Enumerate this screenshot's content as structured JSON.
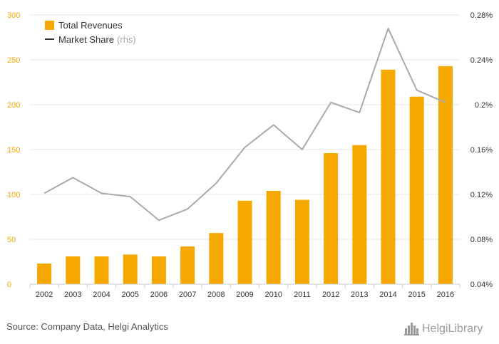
{
  "chart_data": {
    "type": "bar",
    "categories": [
      "2002",
      "2003",
      "2004",
      "2005",
      "2006",
      "2007",
      "2008",
      "2009",
      "2010",
      "2011",
      "2012",
      "2013",
      "2014",
      "2015",
      "2016"
    ],
    "series": [
      {
        "name": "Total Revenues",
        "type": "bar",
        "axis": "left",
        "color": "#f5a800",
        "values": [
          23,
          31,
          31,
          33,
          31,
          42,
          57,
          93,
          104,
          94,
          146,
          155,
          239,
          209,
          243
        ]
      },
      {
        "name": "Market Share",
        "name_suffix": "(rhs)",
        "type": "line",
        "axis": "right",
        "color": "#aaaaaa",
        "values": [
          0.121,
          0.135,
          0.121,
          0.118,
          0.097,
          0.107,
          0.13,
          0.162,
          0.182,
          0.16,
          0.202,
          0.193,
          0.268,
          0.213,
          0.202
        ]
      }
    ],
    "y_left": {
      "range": [
        0,
        300
      ],
      "ticks": [
        "0",
        "50",
        "100",
        "150",
        "200",
        "250",
        "300"
      ]
    },
    "y_right": {
      "range": [
        0.04,
        0.28
      ],
      "ticks": [
        "0.04%",
        "0.08%",
        "0.12%",
        "0.16%",
        "0.2%",
        "0.24%",
        "0.28%"
      ]
    },
    "grid": true,
    "legend_position": "top-left"
  },
  "source_text": "Source: Company Data, Helgi Analytics",
  "logo_text": "HelgiLibrary",
  "colors": {
    "bar": "#f5a800",
    "line": "#aaaaaa",
    "axis_left_text": "#f5a800",
    "grid": "#e6e6e6"
  }
}
